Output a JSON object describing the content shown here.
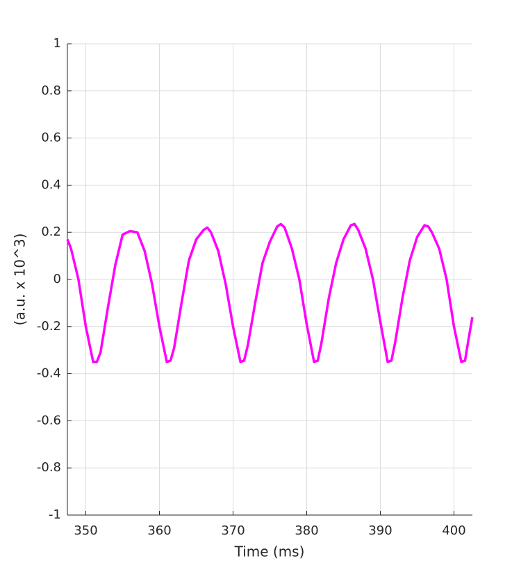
{
  "chart_data": {
    "type": "line",
    "xlabel": "Time (ms)",
    "ylabel": "(a.u. x 10^3)",
    "x": [
      347.5,
      348,
      349,
      350,
      351,
      351.5,
      352,
      353,
      354,
      355,
      356,
      357,
      358,
      359,
      360,
      361,
      361.5,
      362,
      363,
      364,
      365,
      366,
      366.5,
      367,
      368,
      369,
      370,
      371,
      371.5,
      372,
      373,
      374,
      375,
      376,
      376.5,
      377,
      378,
      379,
      380,
      381,
      381.5,
      382,
      383,
      384,
      385,
      386,
      386.5,
      387,
      388,
      389,
      390,
      391,
      391.5,
      392,
      393,
      394,
      395,
      396,
      396.5,
      397,
      398,
      399,
      400,
      401,
      401.5,
      402,
      402.5
    ],
    "series": [
      {
        "color": "#ff00ff",
        "values": [
          0.17,
          0.13,
          0.0,
          -0.2,
          -0.35,
          -0.35,
          -0.31,
          -0.12,
          0.06,
          0.19,
          0.205,
          0.2,
          0.12,
          -0.02,
          -0.2,
          -0.35,
          -0.345,
          -0.29,
          -0.1,
          0.08,
          0.17,
          0.21,
          0.22,
          0.2,
          0.12,
          -0.02,
          -0.2,
          -0.35,
          -0.345,
          -0.28,
          -0.1,
          0.07,
          0.16,
          0.225,
          0.235,
          0.22,
          0.13,
          0.0,
          -0.19,
          -0.35,
          -0.345,
          -0.27,
          -0.08,
          0.07,
          0.17,
          0.23,
          0.235,
          0.21,
          0.13,
          0.0,
          -0.18,
          -0.35,
          -0.345,
          -0.27,
          -0.08,
          0.08,
          0.18,
          0.23,
          0.225,
          0.2,
          0.13,
          0.0,
          -0.2,
          -0.35,
          -0.345,
          -0.25,
          -0.16
        ]
      }
    ],
    "xlim": [
      347.5,
      402.5
    ],
    "xticks": [
      350,
      360,
      370,
      380,
      390,
      400
    ],
    "ylim": [
      -1,
      1
    ],
    "yticks": [
      -1,
      -0.8,
      -0.6,
      -0.4,
      -0.2,
      0,
      0.2,
      0.4,
      0.6,
      0.8,
      1
    ],
    "grid": true
  }
}
